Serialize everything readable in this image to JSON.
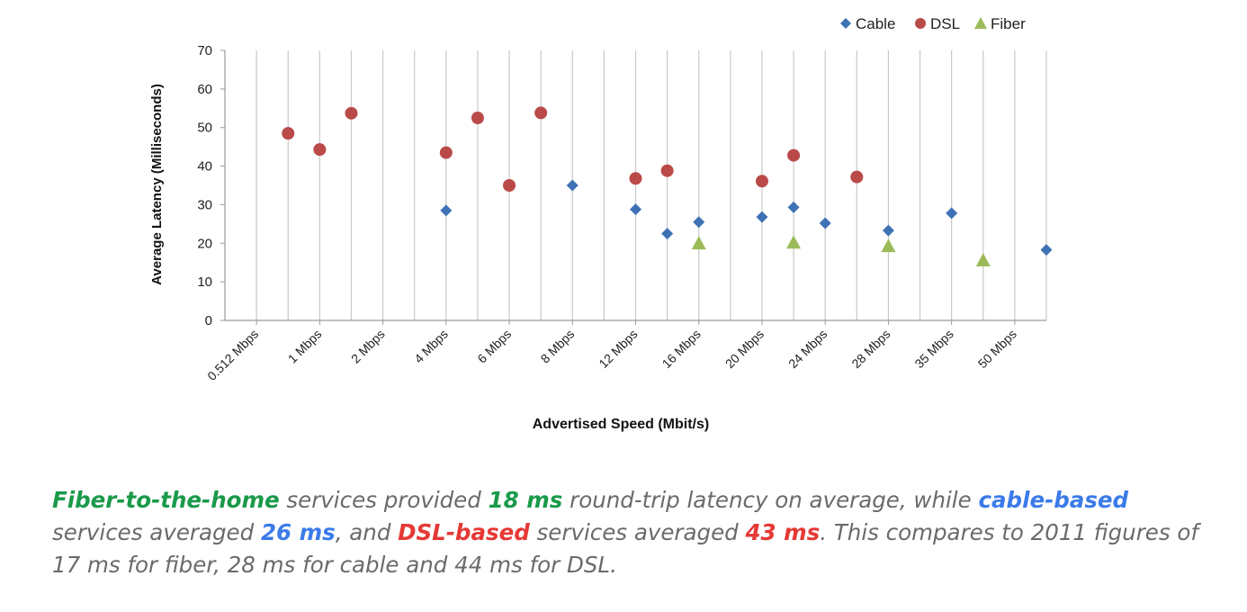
{
  "chart_data": {
    "type": "scatter",
    "title": "",
    "xlabel": "Advertised Speed (Mbit/s)",
    "ylabel": "Average Latency (Milliseconds)",
    "ylim": [
      0,
      70
    ],
    "yticks": [
      "0",
      "10",
      "20",
      "30",
      "40",
      "50",
      "60",
      "70"
    ],
    "x_tick_labels": [
      "0.512 Mbps",
      "1 Mbps",
      "2 Mbps",
      "4 Mbps",
      "6 Mbps",
      "8 Mbps",
      "12 Mbps",
      "16 Mbps",
      "20 Mbps",
      "24 Mbps",
      "28 Mbps",
      "35 Mbps",
      "50 Mbps"
    ],
    "grid": "vertical",
    "legend_position": "top-right",
    "series": [
      {
        "name": "Cable",
        "marker": "diamond",
        "color": "#3f72b5",
        "points": [
          {
            "x": "4 Mbps",
            "y": 28.5
          },
          {
            "x": "8 Mbps",
            "y": 35
          },
          {
            "x": "12 Mbps",
            "y": 28.8
          },
          {
            "x": "12 Mbps",
            "y": 22.5,
            "offset": 0.5
          },
          {
            "x": "16 Mbps",
            "y": 25.5
          },
          {
            "x": "20 Mbps",
            "y": 26.8
          },
          {
            "x": "20 Mbps",
            "y": 29.3,
            "offset": 0.5
          },
          {
            "x": "24 Mbps",
            "y": 25.2
          },
          {
            "x": "28 Mbps",
            "y": 23.3
          },
          {
            "x": "35 Mbps",
            "y": 27.8
          },
          {
            "x": "50 Mbps",
            "y": 18.3,
            "offset": 0.5
          }
        ]
      },
      {
        "name": "DSL",
        "marker": "circle",
        "color": "#b94a48",
        "points": [
          {
            "x": "0.512 Mbps",
            "y": 48.5,
            "offset": 0.5
          },
          {
            "x": "1 Mbps",
            "y": 44.3
          },
          {
            "x": "1 Mbps",
            "y": 53.7,
            "offset": 0.5
          },
          {
            "x": "4 Mbps",
            "y": 43.5
          },
          {
            "x": "4 Mbps",
            "y": 52.5,
            "offset": 0.5
          },
          {
            "x": "6 Mbps",
            "y": 35
          },
          {
            "x": "6 Mbps",
            "y": 53.8,
            "offset": 0.5
          },
          {
            "x": "12 Mbps",
            "y": 36.8
          },
          {
            "x": "12 Mbps",
            "y": 38.8,
            "offset": 0.5
          },
          {
            "x": "20 Mbps",
            "y": 36.1
          },
          {
            "x": "20 Mbps",
            "y": 42.8,
            "offset": 0.5
          },
          {
            "x": "24 Mbps",
            "y": 37.2,
            "offset": 0.5
          }
        ]
      },
      {
        "name": "Fiber",
        "marker": "triangle",
        "color": "#9bbb59",
        "points": [
          {
            "x": "16 Mbps",
            "y": 20
          },
          {
            "x": "20 Mbps",
            "y": 20.2,
            "offset": 0.5
          },
          {
            "x": "28 Mbps",
            "y": 19.3
          },
          {
            "x": "35 Mbps",
            "y": 15.6,
            "offset": 0.5
          }
        ]
      }
    ]
  },
  "caption": {
    "parts": [
      {
        "text": "Fiber-to-the-home",
        "bold": true,
        "color": "#1a9a4a"
      },
      {
        "text": " services provided "
      },
      {
        "text": "18 ms",
        "bold": true,
        "color": "#1a9a4a"
      },
      {
        "text": " round-trip latency on average, while "
      },
      {
        "text": "cable-based",
        "bold": true,
        "color": "#3b7bea"
      },
      {
        "text": " services averaged "
      },
      {
        "text": "26 ms",
        "bold": true,
        "color": "#3b7bea"
      },
      {
        "text": ", and "
      },
      {
        "text": "DSL-based",
        "bold": true,
        "color": "#e53935"
      },
      {
        "text": " services averaged "
      },
      {
        "text": "43 ms",
        "bold": true,
        "color": "#e53935"
      },
      {
        "text": ". This compares to 2011 figures of 17 ms for fiber, 28 ms for cable and 44 ms for DSL."
      }
    ]
  }
}
